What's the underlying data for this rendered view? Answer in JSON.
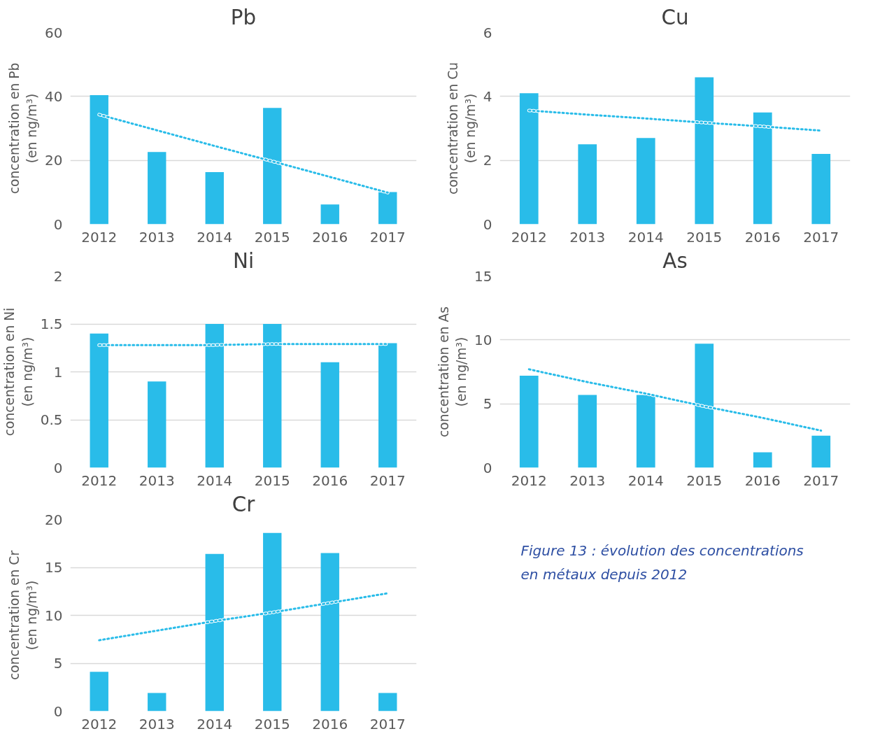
{
  "chart_data": [
    {
      "type": "bar",
      "title": "Pb",
      "ylabel": "concentration en Pb\n(en ng/m³)",
      "x": [
        2012,
        2013,
        2014,
        2015,
        2016,
        2017
      ],
      "xlim": [
        2011.5,
        2017.5
      ],
      "xticks": [
        2012,
        2013,
        2014,
        2015,
        2016,
        2017
      ],
      "ylim": [
        0,
        60
      ],
      "yticks": [
        0,
        20,
        40,
        60
      ],
      "grid": "y",
      "series": [
        {
          "type": "bar",
          "color": "#29bce9",
          "values": [
            40.4,
            22.6,
            16.3,
            36.4,
            6.2,
            10.1
          ]
        },
        {
          "type": "line",
          "color": "#29bce9",
          "line_style": "dotted",
          "values": [
            34.3,
            29.4,
            24.5,
            19.7,
            14.8,
            9.9
          ]
        }
      ]
    },
    {
      "type": "bar",
      "title": "Cu",
      "ylabel": "concentration en Cu\n(en ng/m³)",
      "x": [
        2012,
        2013,
        2014,
        2015,
        2016,
        2017
      ],
      "xlim": [
        2011.5,
        2017.5
      ],
      "xticks": [
        2012,
        2013,
        2014,
        2015,
        2016,
        2017
      ],
      "ylim": [
        0,
        6
      ],
      "yticks": [
        0,
        2,
        4,
        6
      ],
      "grid": "y",
      "series": [
        {
          "type": "bar",
          "color": "#29bce9",
          "values": [
            4.1,
            2.5,
            2.7,
            4.6,
            3.5,
            2.2
          ]
        },
        {
          "type": "line",
          "color": "#29bce9",
          "line_style": "dotted",
          "values": [
            3.56,
            3.43,
            3.31,
            3.18,
            3.06,
            2.93
          ]
        }
      ]
    },
    {
      "type": "bar",
      "title": "Ni",
      "ylabel": "concentration en Ni\n(en ng/m³)",
      "x": [
        2012,
        2013,
        2014,
        2015,
        2016,
        2017
      ],
      "xlim": [
        2011.5,
        2017.5
      ],
      "xticks": [
        2012,
        2013,
        2014,
        2015,
        2016,
        2017
      ],
      "ylim": [
        0,
        2
      ],
      "yticks": [
        0,
        0.5,
        1,
        1.5,
        2
      ],
      "grid": "y",
      "series": [
        {
          "type": "bar",
          "color": "#29bce9",
          "values": [
            1.4,
            0.9,
            1.5,
            1.5,
            1.1,
            1.3
          ]
        },
        {
          "type": "line",
          "color": "#29bce9",
          "line_style": "dotted",
          "values": [
            1.28,
            1.28,
            1.28,
            1.29,
            1.29,
            1.29
          ]
        }
      ]
    },
    {
      "type": "bar",
      "title": "As",
      "ylabel": "concentration en As\n(en ng/m³)",
      "x": [
        2012,
        2013,
        2014,
        2015,
        2016,
        2017
      ],
      "xlim": [
        2011.5,
        2017.5
      ],
      "xticks": [
        2012,
        2013,
        2014,
        2015,
        2016,
        2017
      ],
      "ylim": [
        0,
        15
      ],
      "yticks": [
        0,
        5,
        10,
        15
      ],
      "grid": "y",
      "series": [
        {
          "type": "bar",
          "color": "#29bce9",
          "values": [
            7.2,
            5.7,
            5.7,
            9.7,
            1.2,
            2.5
          ]
        },
        {
          "type": "line",
          "color": "#29bce9",
          "line_style": "dotted",
          "values": [
            7.7,
            6.7,
            5.8,
            4.8,
            3.9,
            2.9
          ]
        }
      ]
    },
    {
      "type": "bar",
      "title": "Cr",
      "ylabel": "concentration en Cr\n(en ng/m³)",
      "x": [
        2012,
        2013,
        2014,
        2015,
        2016,
        2017
      ],
      "xlim": [
        2011.5,
        2017.5
      ],
      "xticks": [
        2012,
        2013,
        2014,
        2015,
        2016,
        2017
      ],
      "ylim": [
        0,
        20
      ],
      "yticks": [
        0,
        5,
        10,
        15,
        20
      ],
      "grid": "y",
      "series": [
        {
          "type": "bar",
          "color": "#29bce9",
          "values": [
            4.1,
            1.9,
            16.4,
            18.6,
            16.5,
            1.9
          ]
        },
        {
          "type": "line",
          "color": "#29bce9",
          "line_style": "dotted",
          "values": [
            7.4,
            8.4,
            9.4,
            10.3,
            11.3,
            12.3
          ]
        }
      ]
    },
    {
      "type": "other",
      "annotations": [
        "Figure 13 : évolution des concentrations\nen métaux depuis 2012"
      ]
    }
  ]
}
